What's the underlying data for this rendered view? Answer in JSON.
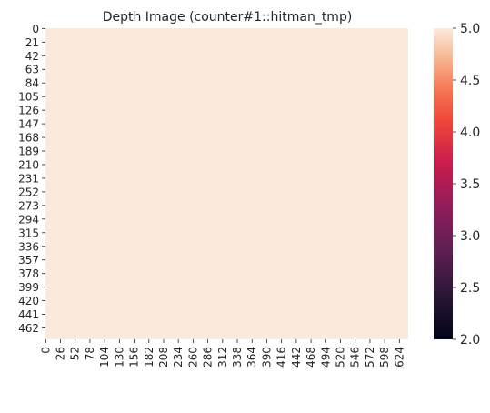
{
  "chart_data": {
    "type": "heatmap",
    "title": "Depth Image (counter#1::hitman_tmp)",
    "xlabel": "",
    "ylabel": "",
    "value": 5.0,
    "x_tick_labels": [
      "0",
      "26",
      "52",
      "78",
      "104",
      "130",
      "156",
      "182",
      "208",
      "234",
      "260",
      "286",
      "312",
      "338",
      "364",
      "390",
      "416",
      "442",
      "468",
      "494",
      "520",
      "546",
      "572",
      "598",
      "624"
    ],
    "y_tick_labels": [
      "0",
      "21",
      "42",
      "63",
      "84",
      "105",
      "126",
      "147",
      "168",
      "189",
      "210",
      "231",
      "252",
      "273",
      "294",
      "315",
      "336",
      "357",
      "378",
      "399",
      "420",
      "441",
      "462"
    ],
    "x_tick_values": [
      0,
      26,
      52,
      78,
      104,
      130,
      156,
      182,
      208,
      234,
      260,
      286,
      312,
      338,
      364,
      390,
      416,
      442,
      468,
      494,
      520,
      546,
      572,
      598,
      624
    ],
    "y_tick_values": [
      0,
      21,
      42,
      63,
      84,
      105,
      126,
      147,
      168,
      189,
      210,
      231,
      252,
      273,
      294,
      315,
      336,
      357,
      378,
      399,
      420,
      441,
      462
    ],
    "n_cols": 640,
    "n_rows": 480,
    "colorbar": {
      "min": 2.0,
      "max": 5.0,
      "tick_values": [
        2.0,
        2.5,
        3.0,
        3.5,
        4.0,
        4.5,
        5.0
      ],
      "tick_labels": [
        "2.0",
        "2.5",
        "3.0",
        "3.5",
        "4.0",
        "4.5",
        "5.0"
      ],
      "colormap": "rocket"
    },
    "cell_color": "#faeadc",
    "grid": false,
    "legend": "none"
  }
}
